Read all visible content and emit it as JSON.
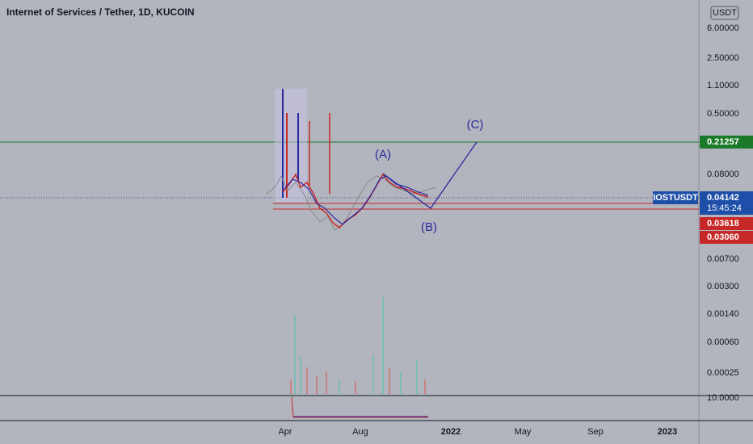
{
  "header": {
    "title": "Internet of Services / Tether, 1D, KUCOIN"
  },
  "price_axis": {
    "currency": "USDT",
    "labels": [
      "6.00000",
      "2.50000",
      "1.10000",
      "0.50000",
      "0.08000",
      "0.00700",
      "0.00300",
      "0.00140",
      "0.00060",
      "0.00025"
    ]
  },
  "tags": {
    "green": "0.21257",
    "symbol": "IOSTUSDT",
    "last": "0.04142",
    "countdown": "15:45:24",
    "red_upper": "0.03618",
    "red_lower": "0.03060"
  },
  "time_axis": [
    "Apr",
    "Aug",
    "2022",
    "May",
    "Sep",
    "2023"
  ],
  "annotations": [
    "(A)",
    "(B)",
    "(C)"
  ],
  "lower_pane": {
    "label": "10.0000"
  }
}
